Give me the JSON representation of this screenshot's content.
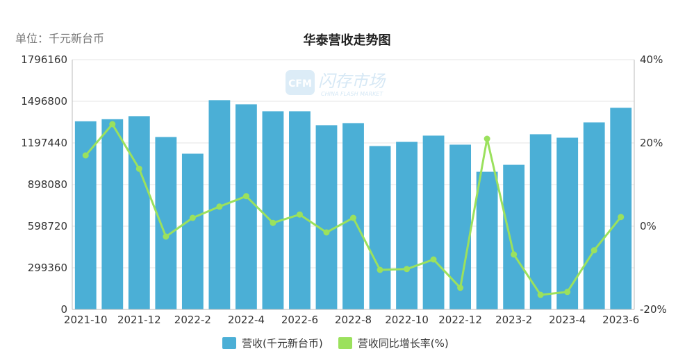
{
  "unit_label": "单位：千元新台币",
  "chart_data": {
    "type": "bar",
    "title": "华泰营收走势图",
    "categories": [
      "2021-10",
      "2021-11",
      "2021-12",
      "2022-1",
      "2022-2",
      "2022-3",
      "2022-4",
      "2022-5",
      "2022-6",
      "2022-7",
      "2022-8",
      "2022-9",
      "2022-10",
      "2022-11",
      "2022-12",
      "2023-1",
      "2023-2",
      "2023-3",
      "2023-4",
      "2023-5",
      "2023-6"
    ],
    "x_tick_labels": [
      "2021-10",
      "2021-12",
      "2022-2",
      "2022-4",
      "2022-6",
      "2022-8",
      "2022-10",
      "2022-12",
      "2023-2",
      "2023-4",
      "2023-6"
    ],
    "y_left": {
      "ylim": [
        0,
        1796160
      ],
      "ticks": [
        "0",
        "299360",
        "598720",
        "898080",
        "1197440",
        "1496800",
        "1796160"
      ]
    },
    "y_right": {
      "ylim": [
        -20,
        40
      ],
      "ticks": [
        "-20%",
        "0%",
        "20%",
        "40%"
      ]
    },
    "grid": true,
    "legend_position": "bottom",
    "series": [
      {
        "name": "营收(千元新台币)",
        "type": "bar",
        "axis": "left",
        "color": "#4bafd6",
        "values": [
          1353000,
          1368000,
          1390000,
          1240000,
          1120000,
          1505000,
          1475000,
          1425000,
          1425000,
          1325000,
          1340000,
          1175000,
          1205000,
          1250000,
          1185000,
          990000,
          1040000,
          1260000,
          1235000,
          1345000,
          1450000
        ]
      },
      {
        "name": "营收同比增长率(%)",
        "type": "line",
        "axis": "right",
        "color": "#9be15d",
        "values": [
          17,
          24.5,
          13.8,
          -2.5,
          2,
          4.7,
          7.2,
          0.8,
          2.8,
          -1.5,
          2,
          -10.5,
          -10.3,
          -8,
          -14.8,
          21,
          -6.8,
          -16.5,
          -15.8,
          -5.8,
          2.2
        ]
      }
    ],
    "watermark": {
      "logo_text": "CFM",
      "name": "闪存市场",
      "sub": "CHINA FLASH MARKET"
    }
  }
}
